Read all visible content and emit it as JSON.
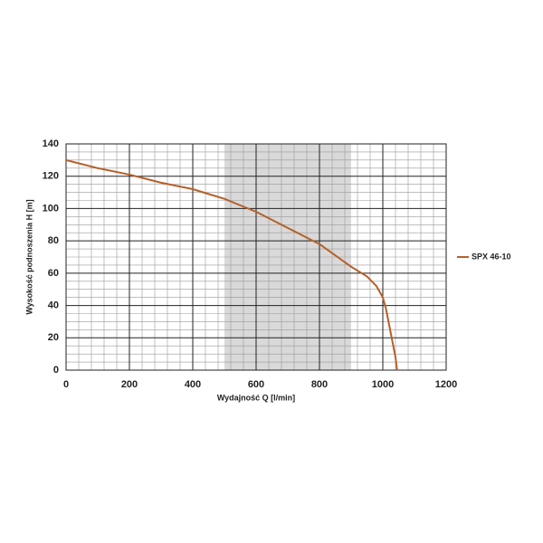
{
  "chart_data": {
    "type": "line",
    "x_label": "Wydajność Q [l/min]",
    "y_label": "Wysokość podnoszenia H [m]",
    "series": [
      {
        "name": "SPX 46-10",
        "color": "#b5602a",
        "x": [
          0,
          100,
          200,
          300,
          400,
          450,
          500,
          600,
          700,
          800,
          850,
          900,
          950,
          980,
          1000,
          1010,
          1020,
          1030,
          1040,
          1045
        ],
        "values": [
          130,
          125,
          121,
          116,
          112,
          109,
          106,
          98,
          88,
          78,
          71,
          64,
          58,
          52,
          45,
          38,
          28,
          18,
          8,
          0
        ]
      }
    ],
    "shaded_region": [
      500,
      900
    ],
    "xlim": [
      0,
      1200
    ],
    "xticks": [
      0,
      200,
      400,
      600,
      800,
      1000,
      1200
    ],
    "ylim": [
      0,
      140
    ],
    "yticks": [
      0,
      20,
      40,
      60,
      80,
      100,
      120,
      140
    ],
    "grid": true,
    "legend": "right"
  }
}
